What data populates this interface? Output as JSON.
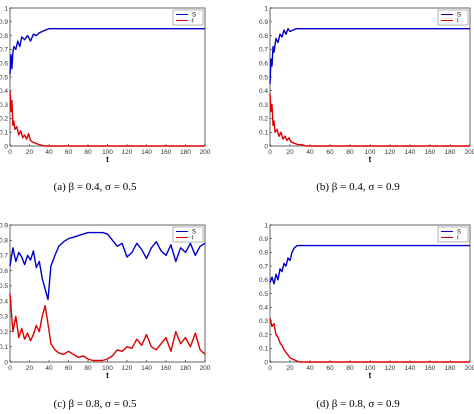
{
  "chart_data": [
    {
      "id": "a",
      "type": "line",
      "caption": "(a)  β = 0.4, σ = 0.5",
      "xlabel": "t",
      "xlim": [
        0,
        200
      ],
      "ylim": [
        0,
        1
      ],
      "xticks": [
        0,
        20,
        40,
        60,
        80,
        100,
        120,
        140,
        160,
        180,
        200
      ],
      "yticks": [
        0,
        0.1,
        0.2,
        0.3,
        0.4,
        0.5,
        0.6,
        0.7,
        0.8,
        0.9,
        1
      ],
      "grid": false,
      "legend": "top-right",
      "series": [
        {
          "name": "S",
          "color": "#0000cc",
          "x": [
            0,
            1,
            2,
            3,
            4,
            6,
            8,
            10,
            12,
            15,
            18,
            21,
            24,
            27,
            30,
            33,
            36,
            40,
            45,
            50,
            60,
            80,
            100,
            120,
            140,
            160,
            180,
            200
          ],
          "y": [
            0.52,
            0.66,
            0.56,
            0.68,
            0.72,
            0.7,
            0.76,
            0.72,
            0.79,
            0.77,
            0.8,
            0.76,
            0.81,
            0.8,
            0.82,
            0.83,
            0.84,
            0.85,
            0.85,
            0.85,
            0.85,
            0.85,
            0.85,
            0.85,
            0.85,
            0.85,
            0.85,
            0.85
          ]
        },
        {
          "name": "I",
          "color": "#dd0000",
          "x": [
            0,
            1,
            2,
            3,
            4,
            5,
            7,
            9,
            11,
            13,
            15,
            17,
            19,
            21,
            23,
            26,
            30,
            35,
            40,
            50,
            60,
            80,
            100,
            120,
            140,
            160,
            180,
            200
          ],
          "y": [
            0.4,
            0.25,
            0.33,
            0.15,
            0.18,
            0.12,
            0.14,
            0.08,
            0.11,
            0.06,
            0.08,
            0.05,
            0.09,
            0.04,
            0.03,
            0.02,
            0.01,
            0.0,
            0.0,
            0.0,
            0.0,
            0.0,
            0.0,
            0.0,
            0.0,
            0.0,
            0.0,
            0.0
          ]
        }
      ]
    },
    {
      "id": "b",
      "type": "line",
      "caption": "(b)  β = 0.4, σ = 0.9",
      "xlabel": "t",
      "xlim": [
        0,
        200
      ],
      "ylim": [
        0,
        1
      ],
      "xticks": [
        0,
        20,
        40,
        60,
        80,
        100,
        120,
        140,
        160,
        180,
        200
      ],
      "yticks": [
        0,
        0.1,
        0.2,
        0.3,
        0.4,
        0.5,
        0.6,
        0.7,
        0.8,
        0.9,
        1
      ],
      "grid": false,
      "legend": "top-right",
      "series": [
        {
          "name": "S",
          "color": "#0000cc",
          "x": [
            0,
            1,
            2,
            3,
            4,
            6,
            8,
            10,
            12,
            14,
            16,
            18,
            20,
            23,
            26,
            30,
            35,
            40,
            50,
            60,
            80,
            100,
            120,
            140,
            160,
            180,
            200
          ],
          "y": [
            0.45,
            0.63,
            0.58,
            0.72,
            0.68,
            0.78,
            0.75,
            0.81,
            0.79,
            0.84,
            0.81,
            0.85,
            0.83,
            0.84,
            0.85,
            0.85,
            0.85,
            0.85,
            0.85,
            0.85,
            0.85,
            0.85,
            0.85,
            0.85,
            0.85,
            0.85,
            0.85
          ]
        },
        {
          "name": "I",
          "color": "#dd0000",
          "x": [
            0,
            1,
            2,
            3,
            4,
            5,
            7,
            9,
            11,
            13,
            15,
            17,
            19,
            21,
            24,
            28,
            32,
            36,
            40,
            50,
            60,
            80,
            100,
            120,
            140,
            160,
            180,
            200
          ],
          "y": [
            0.38,
            0.25,
            0.3,
            0.15,
            0.18,
            0.1,
            0.12,
            0.07,
            0.1,
            0.05,
            0.07,
            0.04,
            0.06,
            0.03,
            0.02,
            0.01,
            0.01,
            0.0,
            0.0,
            0.0,
            0.0,
            0.0,
            0.0,
            0.0,
            0.0,
            0.0,
            0.0,
            0.0
          ]
        }
      ]
    },
    {
      "id": "c",
      "type": "line",
      "caption": "(c)  β = 0.8, σ = 0.5",
      "xlabel": "t",
      "xlim": [
        0,
        200
      ],
      "ylim": [
        0,
        0.9
      ],
      "xticks": [
        0,
        20,
        40,
        60,
        80,
        100,
        120,
        140,
        160,
        180,
        200
      ],
      "yticks": [
        0,
        0.1,
        0.2,
        0.3,
        0.4,
        0.5,
        0.6,
        0.7,
        0.8,
        0.9
      ],
      "grid": false,
      "legend": "top-right",
      "series": [
        {
          "name": "S",
          "color": "#0000cc",
          "x": [
            0,
            3,
            6,
            9,
            12,
            15,
            18,
            21,
            24,
            27,
            30,
            33,
            36,
            39,
            42,
            46,
            50,
            55,
            60,
            65,
            70,
            75,
            80,
            85,
            90,
            95,
            100,
            105,
            110,
            115,
            120,
            125,
            130,
            135,
            140,
            145,
            150,
            155,
            160,
            165,
            170,
            175,
            180,
            185,
            190,
            195,
            200
          ],
          "y": [
            0.63,
            0.75,
            0.66,
            0.72,
            0.69,
            0.64,
            0.7,
            0.67,
            0.73,
            0.62,
            0.66,
            0.55,
            0.48,
            0.41,
            0.63,
            0.7,
            0.76,
            0.79,
            0.81,
            0.82,
            0.83,
            0.84,
            0.85,
            0.85,
            0.85,
            0.85,
            0.84,
            0.8,
            0.76,
            0.78,
            0.69,
            0.72,
            0.78,
            0.74,
            0.68,
            0.75,
            0.79,
            0.73,
            0.7,
            0.77,
            0.66,
            0.75,
            0.72,
            0.78,
            0.7,
            0.76,
            0.78
          ]
        },
        {
          "name": "I",
          "color": "#dd0000",
          "x": [
            0,
            3,
            6,
            9,
            12,
            15,
            18,
            21,
            24,
            27,
            30,
            33,
            36,
            39,
            42,
            46,
            50,
            55,
            60,
            65,
            70,
            75,
            80,
            85,
            90,
            95,
            100,
            105,
            110,
            115,
            120,
            125,
            130,
            135,
            140,
            145,
            150,
            155,
            160,
            165,
            170,
            175,
            180,
            185,
            190,
            195,
            200
          ],
          "y": [
            0.45,
            0.2,
            0.3,
            0.16,
            0.22,
            0.15,
            0.19,
            0.14,
            0.18,
            0.24,
            0.2,
            0.3,
            0.37,
            0.25,
            0.12,
            0.08,
            0.06,
            0.05,
            0.07,
            0.05,
            0.03,
            0.04,
            0.02,
            0.01,
            0.01,
            0.01,
            0.02,
            0.04,
            0.08,
            0.07,
            0.1,
            0.09,
            0.15,
            0.11,
            0.18,
            0.1,
            0.08,
            0.12,
            0.16,
            0.07,
            0.2,
            0.12,
            0.16,
            0.1,
            0.19,
            0.08,
            0.05
          ]
        }
      ]
    },
    {
      "id": "d",
      "type": "line",
      "caption": "(d)  β = 0.8, σ = 0.9",
      "xlabel": "t",
      "xlim": [
        0,
        200
      ],
      "ylim": [
        0,
        1
      ],
      "xticks": [
        0,
        20,
        40,
        60,
        80,
        100,
        120,
        140,
        160,
        180,
        200
      ],
      "yticks": [
        0,
        0.1,
        0.2,
        0.3,
        0.4,
        0.5,
        0.6,
        0.7,
        0.8,
        0.9,
        1
      ],
      "grid": false,
      "legend": "top-right",
      "series": [
        {
          "name": "S",
          "color": "#0000cc",
          "x": [
            0,
            2,
            4,
            6,
            8,
            10,
            12,
            14,
            16,
            18,
            20,
            22,
            24,
            27,
            30,
            35,
            40,
            50,
            60,
            80,
            100,
            120,
            140,
            160,
            180,
            200
          ],
          "y": [
            0.58,
            0.62,
            0.57,
            0.64,
            0.6,
            0.68,
            0.66,
            0.72,
            0.7,
            0.76,
            0.74,
            0.8,
            0.83,
            0.85,
            0.85,
            0.85,
            0.85,
            0.85,
            0.85,
            0.85,
            0.85,
            0.85,
            0.85,
            0.85,
            0.85,
            0.85
          ]
        },
        {
          "name": "I",
          "color": "#dd0000",
          "x": [
            0,
            2,
            4,
            6,
            8,
            10,
            12,
            14,
            16,
            18,
            20,
            23,
            26,
            30,
            35,
            40,
            50,
            60,
            80,
            100,
            120,
            140,
            160,
            180,
            200
          ],
          "y": [
            0.32,
            0.26,
            0.28,
            0.2,
            0.18,
            0.14,
            0.12,
            0.09,
            0.07,
            0.05,
            0.03,
            0.02,
            0.01,
            0.0,
            0.0,
            0.0,
            0.0,
            0.0,
            0.0,
            0.0,
            0.0,
            0.0,
            0.0,
            0.0,
            0.0
          ]
        }
      ]
    }
  ]
}
